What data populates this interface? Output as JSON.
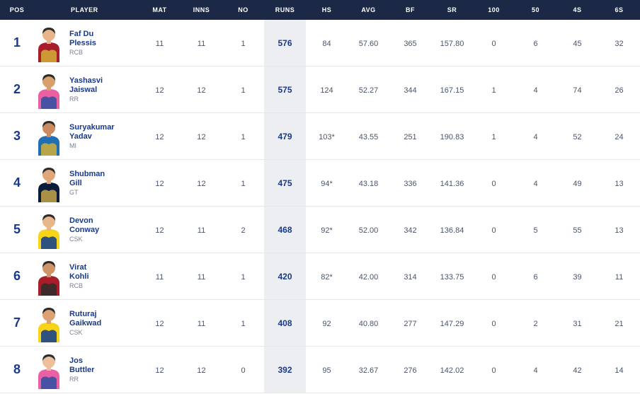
{
  "colors": {
    "header_bg": "#1c2946",
    "header_text": "#ffffff",
    "row_border": "#e8e8ec",
    "primary_text": "#19398a",
    "muted_text": "#7b8294",
    "stat_text": "#4a5568",
    "runs_highlight_bg": "#eceef2"
  },
  "columns": {
    "pos": "POS",
    "player": "PLAYER",
    "mat": "MAT",
    "inns": "INNS",
    "no": "NO",
    "runs": "RUNS",
    "hs": "HS",
    "avg": "AVG",
    "bf": "BF",
    "sr": "SR",
    "hundreds": "100",
    "fifties": "50",
    "fours": "4S",
    "sixes": "6S"
  },
  "rows": [
    {
      "pos": "1",
      "name_l1": "Faf Du",
      "name_l2": "Plessis",
      "team": "RCB",
      "kit": {
        "primary": "#a71d2a",
        "secondary": "#d4af37",
        "skin": "#e8b48a"
      },
      "mat": "11",
      "inns": "11",
      "no": "1",
      "runs": "576",
      "hs": "84",
      "avg": "57.60",
      "bf": "365",
      "sr": "157.80",
      "hundreds": "0",
      "fifties": "6",
      "fours": "45",
      "sixes": "32"
    },
    {
      "pos": "2",
      "name_l1": "Yashasvi",
      "name_l2": "Jaiswal",
      "team": "RR",
      "kit": {
        "primary": "#eb5fa3",
        "secondary": "#2b4fa2",
        "skin": "#d9a06b"
      },
      "mat": "12",
      "inns": "12",
      "no": "1",
      "runs": "575",
      "hs": "124",
      "avg": "52.27",
      "bf": "344",
      "sr": "167.15",
      "hundreds": "1",
      "fifties": "4",
      "fours": "74",
      "sixes": "26"
    },
    {
      "pos": "3",
      "name_l1": "Suryakumar",
      "name_l2": "Yadav",
      "team": "MI",
      "kit": {
        "primary": "#1f6fb2",
        "secondary": "#d4af37",
        "skin": "#c98b5f"
      },
      "mat": "12",
      "inns": "12",
      "no": "1",
      "runs": "479",
      "hs": "103*",
      "avg": "43.55",
      "bf": "251",
      "sr": "190.83",
      "hundreds": "1",
      "fifties": "4",
      "fours": "52",
      "sixes": "24"
    },
    {
      "pos": "4",
      "name_l1": "Shubman",
      "name_l2": "Gill",
      "team": "GT",
      "kit": {
        "primary": "#0b1d3a",
        "secondary": "#c7a44a",
        "skin": "#e0a878"
      },
      "mat": "12",
      "inns": "12",
      "no": "1",
      "runs": "475",
      "hs": "94*",
      "avg": "43.18",
      "bf": "336",
      "sr": "141.36",
      "hundreds": "0",
      "fifties": "4",
      "fours": "49",
      "sixes": "13"
    },
    {
      "pos": "5",
      "name_l1": "Devon",
      "name_l2": "Conway",
      "team": "CSK",
      "kit": {
        "primary": "#f7d417",
        "secondary": "#0a3b8f",
        "skin": "#e9b68c"
      },
      "mat": "12",
      "inns": "11",
      "no": "2",
      "runs": "468",
      "hs": "92*",
      "avg": "52.00",
      "bf": "342",
      "sr": "136.84",
      "hundreds": "0",
      "fifties": "5",
      "fours": "55",
      "sixes": "13"
    },
    {
      "pos": "6",
      "name_l1": "Virat",
      "name_l2": "Kohli",
      "team": "RCB",
      "kit": {
        "primary": "#a71d2a",
        "secondary": "#2b2b2b",
        "skin": "#d09468"
      },
      "mat": "11",
      "inns": "11",
      "no": "1",
      "runs": "420",
      "hs": "82*",
      "avg": "42.00",
      "bf": "314",
      "sr": "133.75",
      "hundreds": "0",
      "fifties": "6",
      "fours": "39",
      "sixes": "11"
    },
    {
      "pos": "7",
      "name_l1": "Ruturaj",
      "name_l2": "Gaikwad",
      "team": "CSK",
      "kit": {
        "primary": "#f7d417",
        "secondary": "#0a3b8f",
        "skin": "#dca274"
      },
      "mat": "12",
      "inns": "11",
      "no": "1",
      "runs": "408",
      "hs": "92",
      "avg": "40.80",
      "bf": "277",
      "sr": "147.29",
      "hundreds": "0",
      "fifties": "2",
      "fours": "31",
      "sixes": "21"
    },
    {
      "pos": "8",
      "name_l1": "Jos",
      "name_l2": "Buttler",
      "team": "RR",
      "kit": {
        "primary": "#eb5fa3",
        "secondary": "#2b4fa2",
        "skin": "#edbf9a"
      },
      "mat": "12",
      "inns": "12",
      "no": "0",
      "runs": "392",
      "hs": "95",
      "avg": "32.67",
      "bf": "276",
      "sr": "142.02",
      "hundreds": "0",
      "fifties": "4",
      "fours": "42",
      "sixes": "14"
    }
  ]
}
